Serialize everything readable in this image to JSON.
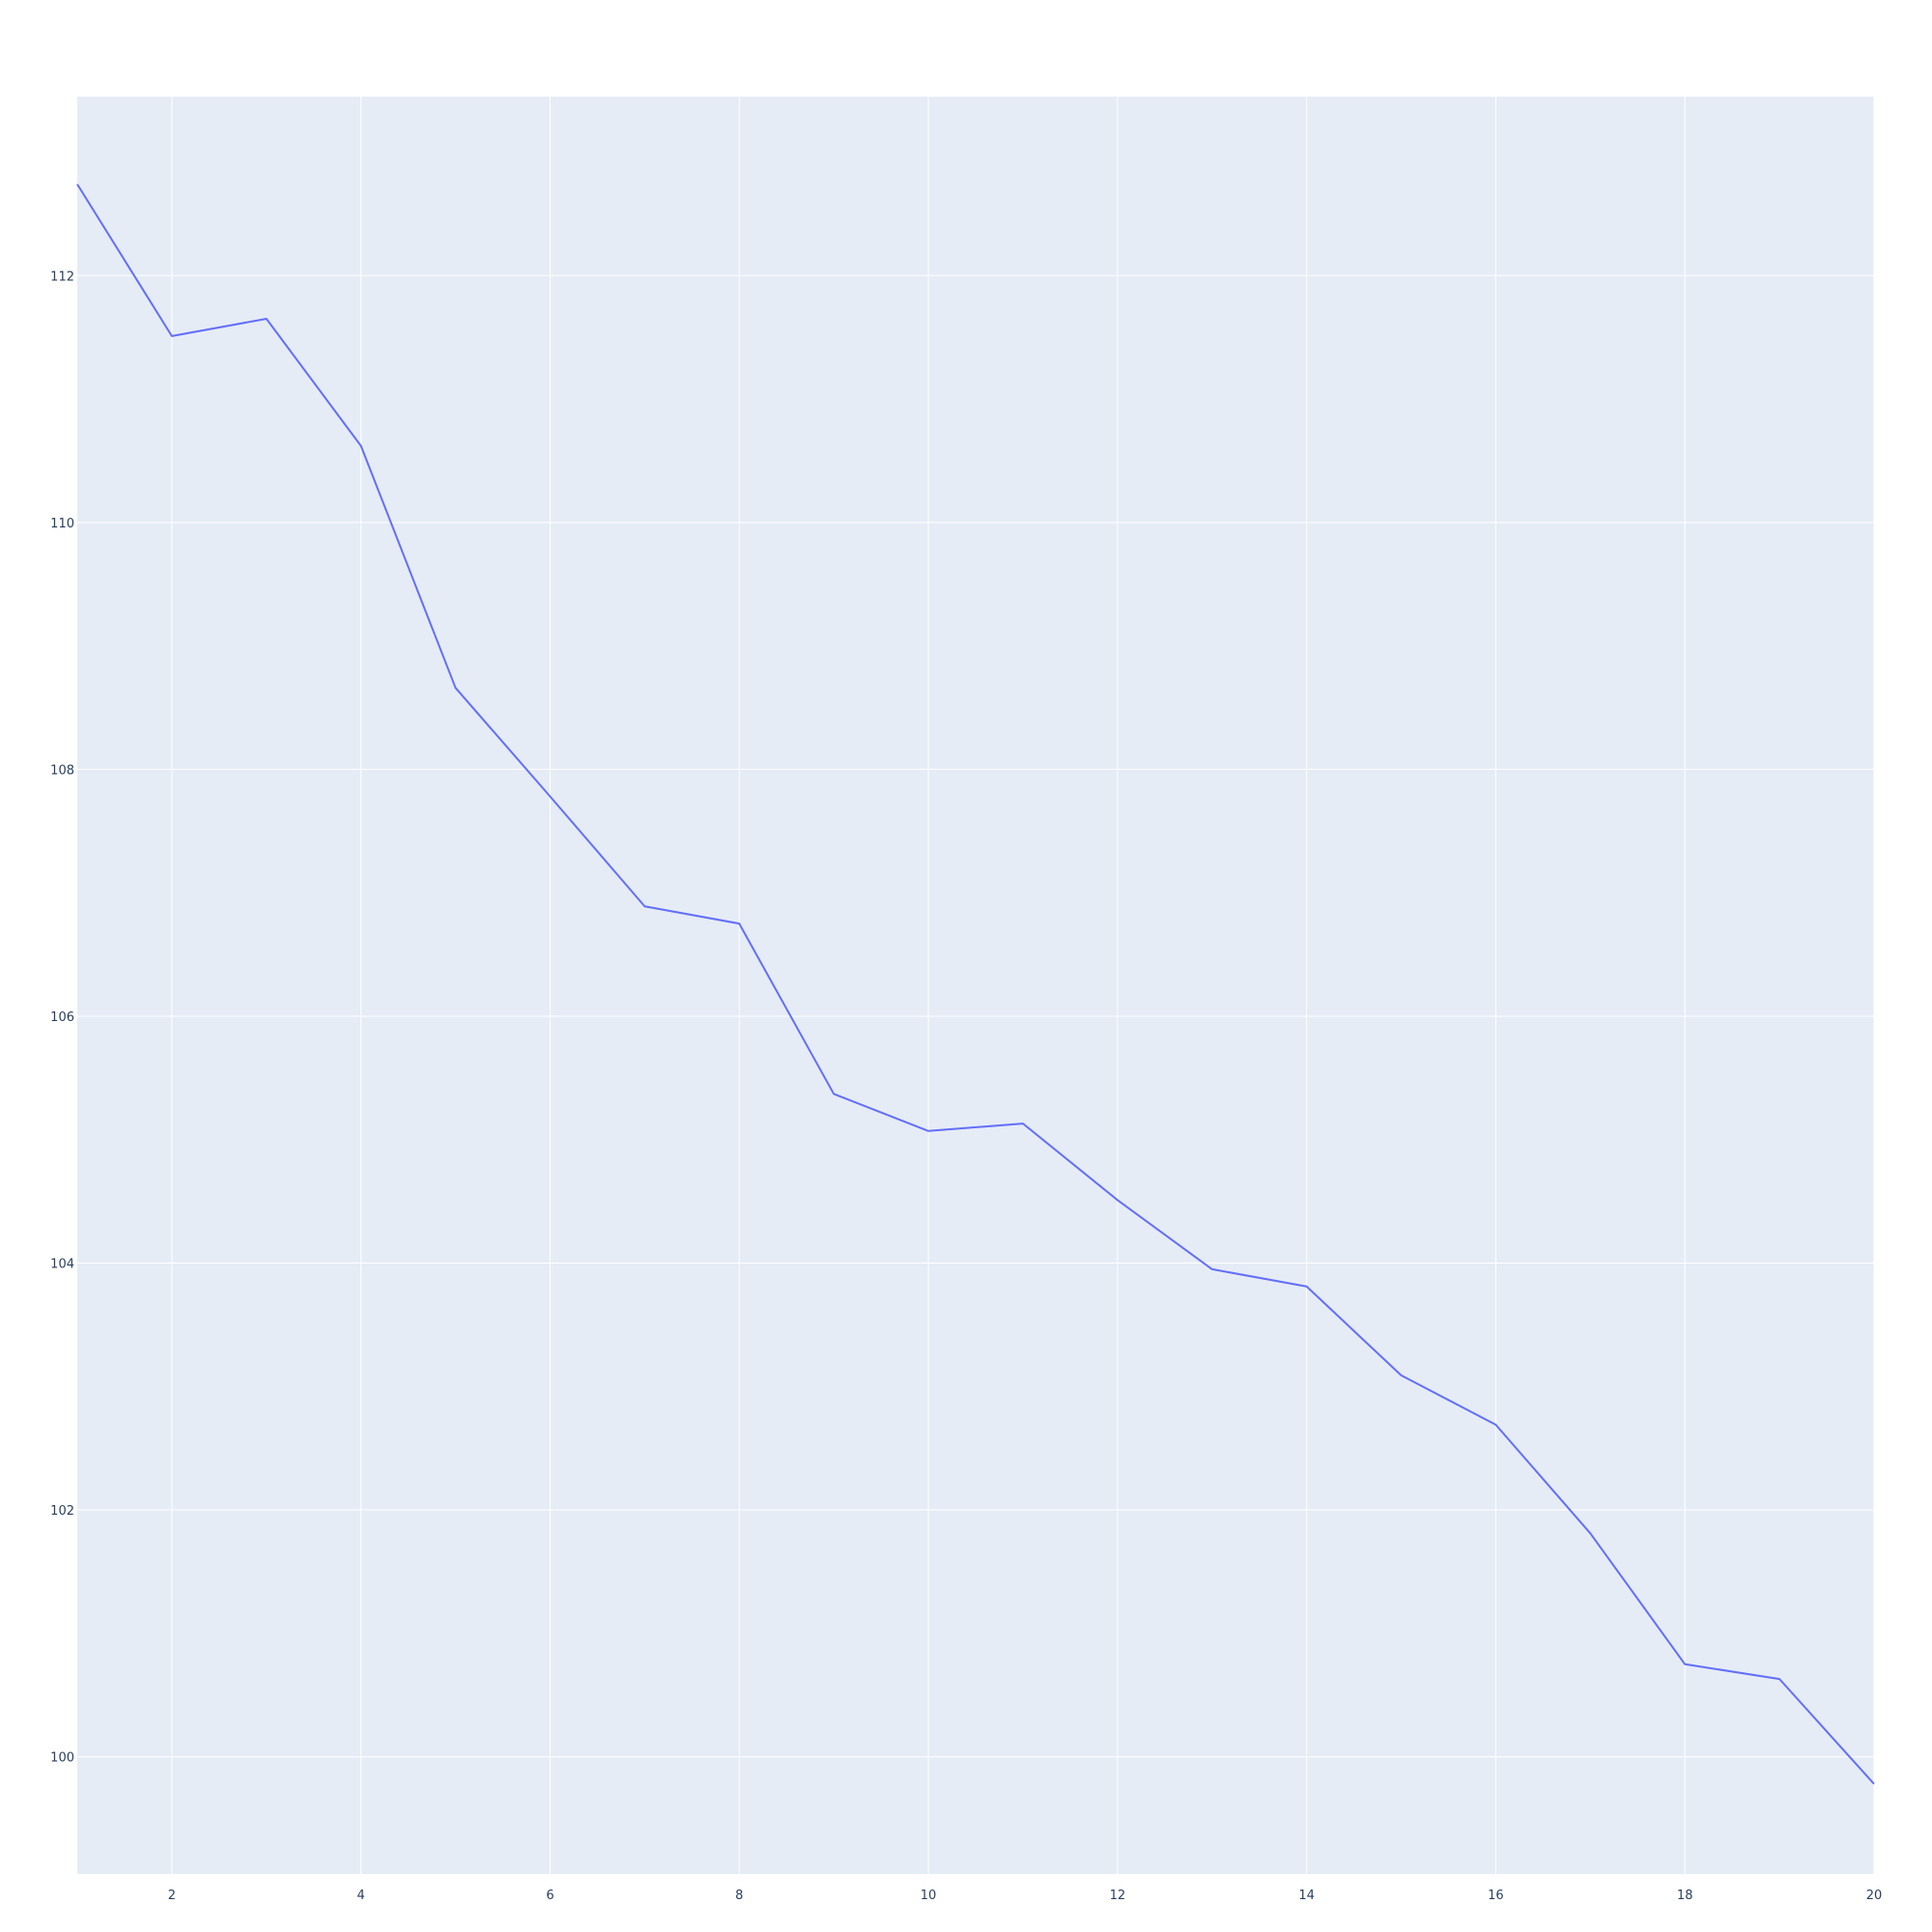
{
  "chart_data": {
    "type": "line",
    "title": "",
    "xlabel": "",
    "ylabel": "",
    "xlim": [
      1,
      20
    ],
    "ylim": [
      99.05,
      113.45
    ],
    "grid": true,
    "legend": "none",
    "x_ticks": [
      2,
      4,
      6,
      8,
      10,
      12,
      14,
      16,
      18,
      20
    ],
    "y_ticks": [
      100,
      102,
      104,
      106,
      108,
      110,
      112
    ],
    "x_tick_labels": [
      "2",
      "4",
      "6",
      "8",
      "10",
      "12",
      "14",
      "16",
      "18",
      "20"
    ],
    "y_tick_labels": [
      "100",
      "102",
      "104",
      "106",
      "108",
      "110",
      "112"
    ],
    "series": [
      {
        "color": "#636efa",
        "x": [
          1,
          2,
          3,
          4,
          5,
          6,
          7,
          8,
          9,
          10,
          11,
          12,
          13,
          14,
          15,
          16,
          17,
          18,
          19,
          20
        ],
        "y": [
          112.74,
          111.51,
          111.65,
          110.62,
          108.66,
          107.78,
          106.89,
          106.75,
          105.37,
          105.07,
          105.13,
          104.51,
          103.95,
          103.81,
          103.09,
          102.69,
          101.81,
          100.75,
          100.63,
          99.78
        ]
      }
    ],
    "colors": {
      "plot_background": "#e5ecf6",
      "grid": "#ffffff",
      "tick_text": "#2a3f5f"
    }
  }
}
